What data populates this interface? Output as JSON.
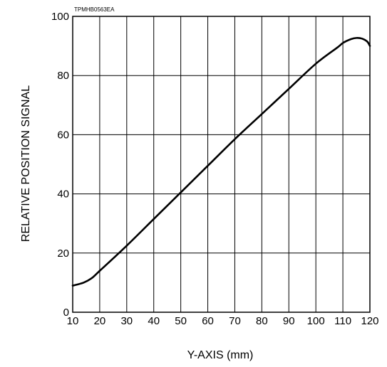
{
  "figure_code": "TPMHB0563EA",
  "chart_data": {
    "type": "line",
    "title": "",
    "xlabel": "Y-AXIS (mm)",
    "ylabel": "RELATIVE POSITION SIGNAL",
    "xlim": [
      10,
      120
    ],
    "ylim": [
      0,
      100
    ],
    "x_ticks": [
      10,
      20,
      30,
      40,
      50,
      60,
      70,
      80,
      90,
      100,
      110,
      120
    ],
    "y_ticks": [
      0,
      20,
      40,
      60,
      80,
      100
    ],
    "grid": true,
    "series": [
      {
        "x": [
          10,
          14,
          17,
          20,
          30,
          40,
          50,
          60,
          70,
          80,
          90,
          100,
          108,
          110,
          113,
          115,
          117,
          119,
          120
        ],
        "y": [
          9,
          10,
          11.5,
          14,
          22.5,
          31.5,
          40.5,
          49.5,
          58.5,
          67,
          75.5,
          84,
          89.5,
          91,
          92.3,
          92.7,
          92.5,
          91.5,
          90
        ]
      }
    ]
  }
}
